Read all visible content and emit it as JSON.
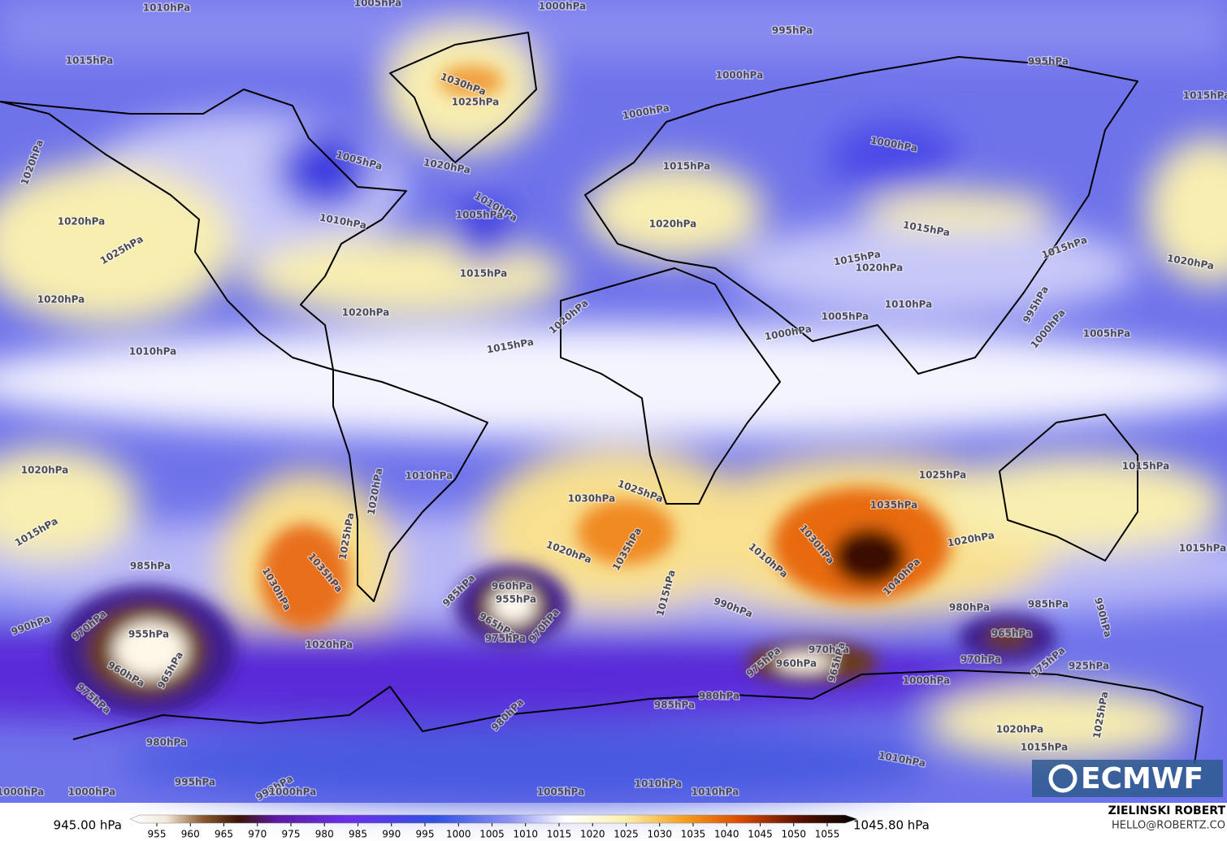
{
  "map": {
    "labels": [
      "1010hPa",
      "1005hPa",
      "1000hPa",
      "995hPa",
      "995hPa",
      "1015hPa",
      "1030hPa",
      "1025hPa",
      "1000hPa",
      "1000hPa",
      "1015hPa",
      "1020hPa",
      "1005hPa",
      "1000hPa",
      "1020hPa",
      "1015hPa",
      "1010hPa",
      "1005hPa",
      "1020hPa",
      "1010hPa",
      "1020hPa",
      "1015hPa",
      "1015hPa",
      "1025hPa",
      "1015hPa",
      "1020hPa",
      "1020hPa",
      "1015hPa",
      "1020hPa",
      "1010hPa",
      "995hPa",
      "1020hPa",
      "1005hPa",
      "1020hPa",
      "1000hPa",
      "1000hPa",
      "1005hPa",
      "1015hPa",
      "1010hPa",
      "1020hPa",
      "1010hPa",
      "1025hPa",
      "1015hPa",
      "1020hPa",
      "1025hPa",
      "1030hPa",
      "1035hPa",
      "1025hPa",
      "1015hPa",
      "1020hPa",
      "1035hPa",
      "1030hPa",
      "1020hPa",
      "1010hPa",
      "1015hPa",
      "1035hPa",
      "1030hPa",
      "1040hPa",
      "985hPa",
      "985hPa",
      "960hPa",
      "955hPa",
      "1015hPa",
      "990hPa",
      "980hPa",
      "985hPa",
      "990hPa",
      "990hPa",
      "970hPa",
      "965hPa",
      "955hPa",
      "975hPa",
      "970hPa",
      "965hPa",
      "1020hPa",
      "970hPa",
      "975hPa",
      "960hPa",
      "965hPa",
      "970hPa",
      "975hPa",
      "925hPa",
      "960hPa",
      "965hPa",
      "1000hPa",
      "975hPa",
      "980hPa",
      "985hPa",
      "1025hPa",
      "980hPa",
      "1020hPa",
      "980hPa",
      "1015hPa",
      "1010hPa",
      "995hPa",
      "990hPa",
      "1000hPa",
      "1000hPa",
      "1000hPa",
      "1005hPa",
      "1010hPa",
      "1010hPa"
    ]
  },
  "colorbar": {
    "min_label": "945.00 hPa",
    "max_label": "1045.80 hPa",
    "ticks": [
      955,
      960,
      965,
      970,
      975,
      980,
      985,
      990,
      995,
      1000,
      1005,
      1010,
      1015,
      1020,
      1025,
      1030,
      1035,
      1040,
      1045,
      1050,
      1055
    ]
  },
  "logo": "ECMWF",
  "credit": {
    "name": "ZIELINSKI ROBERT",
    "email": "HELLO@ROBERTZ.CO"
  }
}
